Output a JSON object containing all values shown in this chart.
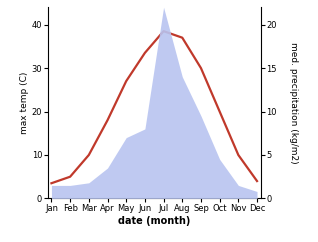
{
  "months": [
    "Jan",
    "Feb",
    "Mar",
    "Apr",
    "May",
    "Jun",
    "Jul",
    "Aug",
    "Sep",
    "Oct",
    "Nov",
    "Dec"
  ],
  "temperature": [
    3.5,
    5.0,
    10.0,
    18.0,
    27.0,
    33.5,
    38.5,
    37.0,
    30.0,
    20.0,
    10.0,
    4.0
  ],
  "precipitation": [
    1.5,
    1.5,
    1.8,
    3.5,
    7.0,
    8.0,
    22.0,
    14.0,
    9.5,
    4.5,
    1.5,
    0.8
  ],
  "temp_color": "#c0392b",
  "precip_fill_color": "#b8c4f0",
  "temp_ylim": [
    0,
    44
  ],
  "precip_ylim": [
    0,
    22
  ],
  "temp_yticks": [
    0,
    10,
    20,
    30,
    40
  ],
  "precip_yticks": [
    0,
    5,
    10,
    15,
    20
  ],
  "xlabel": "date (month)",
  "ylabel_left": "max temp (C)",
  "ylabel_right": "med. precipitation (kg/m2)",
  "bg_color": "#ffffff",
  "line_width": 1.6,
  "label_fontsize": 6.5,
  "tick_fontsize": 6.0,
  "xlabel_fontsize": 7.0
}
